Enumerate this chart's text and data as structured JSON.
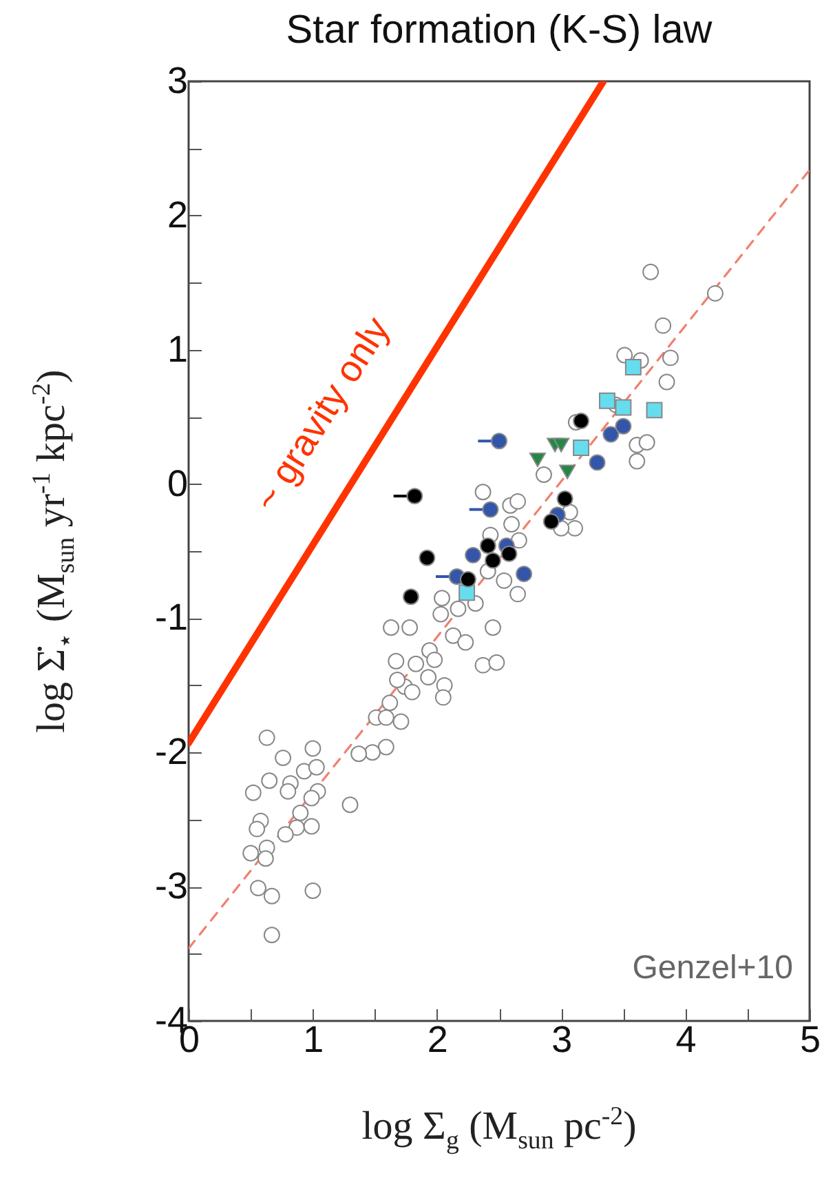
{
  "chart_data": {
    "type": "scatter",
    "title": "Star formation (K-S) law",
    "xlabel": "log Σ$_{g}$ (M$_{sun}$ pc$^{-2}$)",
    "ylabel": "log Σ̇$_{⋆}$ (M$_{sun}$ yr$^{-1}$ kpc$^{-2}$)",
    "annotations": [
      "Genzel+10"
    ],
    "xlim": [
      0,
      5
    ],
    "ylim": [
      -4,
      3
    ],
    "xticks": [
      0,
      {
        "value": 0.5,
        "label": null
      },
      1,
      {
        "value": 1.5,
        "label": null
      },
      2,
      {
        "value": 2.5,
        "label": null
      },
      3,
      {
        "value": 3.5,
        "label": null
      },
      4,
      {
        "value": 4.5,
        "label": null
      },
      5
    ],
    "yticks": [
      -4,
      {
        "value": -3.5,
        "label": null
      },
      -3,
      {
        "value": -2.5,
        "label": null
      },
      -2,
      {
        "value": -1.5,
        "label": null
      },
      -1,
      {
        "value": -0.5,
        "label": null
      },
      0,
      {
        "value": 0.5,
        "label": null
      },
      1,
      {
        "value": 1.5,
        "label": null
      },
      2,
      {
        "value": 2.5,
        "label": null
      },
      3
    ],
    "series": [
      {
        "type": "line",
        "name": "~ gravity only",
        "color": "#ff3300",
        "line_style": "solid",
        "marker": "none",
        "x": [
          0,
          3.34
        ],
        "values": [
          -1.93,
          3
        ]
      },
      {
        "type": "line",
        "color": "#f08070",
        "line_style": "dashed",
        "marker": "none",
        "x": [
          0,
          5
        ],
        "values": [
          -3.46,
          2.34
        ]
      },
      {
        "color": "#ffffff",
        "marker": "circle",
        "x": [
          3.72,
          4.24,
          3.82,
          3.51,
          3.64,
          3.88,
          3.85,
          3.44,
          3.61,
          3.69,
          3.61,
          3.12,
          2.86,
          2.37,
          2.59,
          2.65,
          2.6,
          3.07,
          3.11,
          3.0,
          2.66,
          2.43,
          2.54,
          2.65,
          2.41,
          2.04,
          2.03,
          2.31,
          1.78,
          1.63,
          2.45,
          2.17,
          2.13,
          2.23,
          1.94,
          2.37,
          2.48,
          1.98,
          1.83,
          1.67,
          1.93,
          2.06,
          2.05,
          1.74,
          1.68,
          1.8,
          1.62,
          1.71,
          1.51,
          1.59,
          1.59,
          1.48,
          1.37,
          1.0,
          0.63,
          0.76,
          0.93,
          1.03,
          0.82,
          0.65,
          0.8,
          1.04,
          0.99,
          0.52,
          1.3,
          0.9,
          0.58,
          0.55,
          0.87,
          0.99,
          0.78,
          0.63,
          0.5,
          0.62,
          0.56,
          0.67,
          1.0,
          0.67
        ],
        "values": [
          1.58,
          1.42,
          1.18,
          0.96,
          0.92,
          0.94,
          0.76,
          0.59,
          0.29,
          0.31,
          0.17,
          0.46,
          0.07,
          -0.06,
          -0.16,
          -0.13,
          -0.3,
          -0.21,
          -0.33,
          -0.33,
          -0.42,
          -0.38,
          -0.72,
          -0.82,
          -0.65,
          -0.85,
          -0.97,
          -0.89,
          -1.07,
          -1.07,
          -1.07,
          -0.93,
          -1.13,
          -1.18,
          -1.24,
          -1.35,
          -1.33,
          -1.31,
          -1.34,
          -1.32,
          -1.44,
          -1.5,
          -1.59,
          -1.51,
          -1.46,
          -1.55,
          -1.63,
          -1.77,
          -1.74,
          -1.74,
          -1.96,
          -2.0,
          -2.01,
          -1.97,
          -1.89,
          -2.04,
          -2.14,
          -2.11,
          -2.23,
          -2.21,
          -2.29,
          -2.29,
          -2.34,
          -2.3,
          -2.39,
          -2.45,
          -2.51,
          -2.57,
          -2.56,
          -2.55,
          -2.61,
          -2.71,
          -2.75,
          -2.79,
          -3.01,
          -3.07,
          -3.03,
          -3.36
        ]
      },
      {
        "color": "#66ddee",
        "marker": "square",
        "x": [
          3.37,
          3.16,
          3.58,
          3.5,
          3.75,
          2.24
        ],
        "values": [
          0.62,
          0.27,
          0.87,
          0.57,
          0.55,
          -0.81
        ]
      },
      {
        "color": "#228844",
        "marker": "triangle",
        "x": [
          2.81,
          2.95,
          3.0,
          3.05
        ],
        "values": [
          0.18,
          0.29,
          0.29,
          0.09
        ]
      },
      {
        "color": "#3355aa",
        "marker": "circle",
        "x": [
          2.5,
          2.43,
          2.16,
          2.29,
          2.56,
          2.7,
          2.97,
          3.4,
          3.29,
          3.5
        ],
        "values": [
          0.32,
          -0.19,
          -0.69,
          -0.53,
          -0.46,
          -0.67,
          -0.23,
          0.37,
          0.16,
          0.43
        ],
        "xerrors": [
          [
            2.33,
            2.5
          ],
          [
            2.26,
            2.43
          ],
          [
            1.99,
            2.16
          ],
          null,
          null,
          null,
          null,
          null,
          null,
          null
        ]
      },
      {
        "color": "#000000",
        "marker": "circle",
        "x": [
          1.82,
          3.16,
          3.03,
          1.92,
          2.41,
          2.45,
          2.58,
          2.92,
          2.25,
          1.79
        ],
        "values": [
          -0.09,
          0.47,
          -0.11,
          -0.55,
          -0.46,
          -0.57,
          -0.52,
          -0.28,
          -0.71,
          -0.84
        ],
        "xerrors": [
          [
            1.65,
            1.82
          ],
          null,
          null,
          null,
          null,
          null,
          null,
          null,
          null,
          null
        ]
      }
    ]
  }
}
